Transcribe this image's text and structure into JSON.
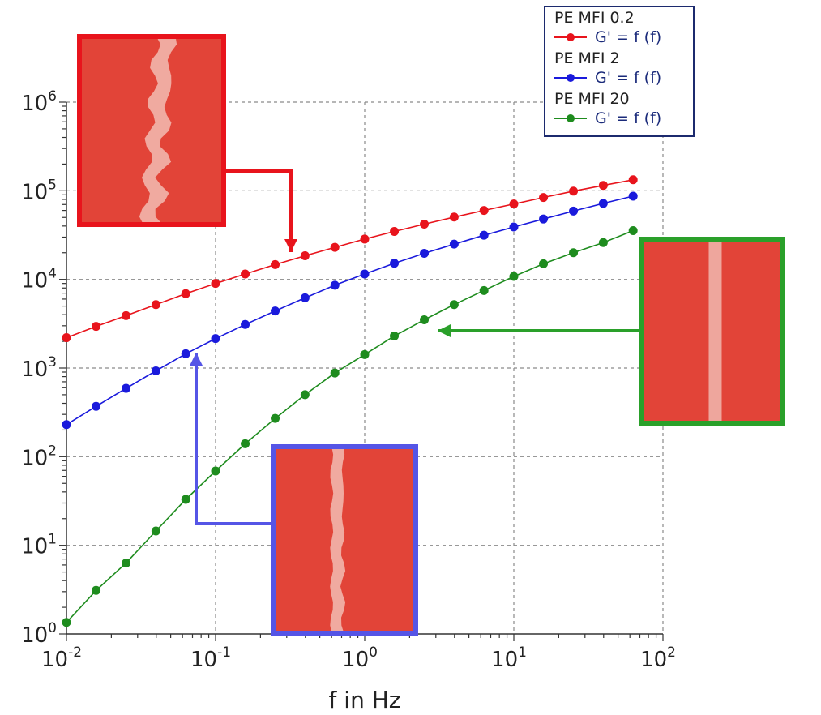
{
  "chart_data": {
    "type": "line",
    "title": "",
    "xlabel": "f in Hz",
    "ylabel": "",
    "xscale": "log",
    "yscale": "log",
    "xlim": [
      0.01,
      100
    ],
    "ylim": [
      1,
      1000000
    ],
    "grid": true,
    "legend_position": "top-right",
    "x_tick_labels": [
      {
        "base": "10",
        "exp": "-2"
      },
      {
        "base": "10",
        "exp": "-1"
      },
      {
        "base": "10",
        "exp": "0"
      },
      {
        "base": "10",
        "exp": "1"
      },
      {
        "base": "10",
        "exp": "2"
      }
    ],
    "y_tick_labels": [
      {
        "base": "10",
        "exp": "0"
      },
      {
        "base": "10",
        "exp": "1"
      },
      {
        "base": "10",
        "exp": "2"
      },
      {
        "base": "10",
        "exp": "3"
      },
      {
        "base": "10",
        "exp": "4"
      },
      {
        "base": "10",
        "exp": "5"
      },
      {
        "base": "10",
        "exp": "6"
      }
    ],
    "x": [
      0.01,
      0.0158,
      0.0251,
      0.0398,
      0.0631,
      0.1,
      0.158,
      0.251,
      0.398,
      0.631,
      1.0,
      1.58,
      2.51,
      3.98,
      6.31,
      10.0,
      15.8,
      25.1,
      39.8,
      63.1
    ],
    "series": [
      {
        "group": "PE MFI 0.2",
        "name": "G' = f (f)",
        "color": "#e8141c",
        "values": [
          2200,
          2950,
          3900,
          5200,
          6900,
          9000,
          11500,
          14700,
          18500,
          23000,
          28500,
          34800,
          42000,
          50500,
          60000,
          71000,
          84000,
          99000,
          115000,
          133000
        ]
      },
      {
        "group": "PE MFI 2",
        "name": "G' = f (f)",
        "color": "#1a1adc",
        "values": [
          230,
          370,
          590,
          930,
          1450,
          2150,
          3100,
          4400,
          6200,
          8600,
          11500,
          15200,
          19700,
          25000,
          31500,
          39000,
          48000,
          59000,
          72000,
          87000
        ]
      },
      {
        "group": "PE MFI 20",
        "name": "G' = f (f)",
        "color": "#1e8c1e",
        "values": [
          1.35,
          3.1,
          6.3,
          14.5,
          33,
          69,
          140,
          270,
          500,
          880,
          1420,
          2300,
          3500,
          5200,
          7500,
          10800,
          15000,
          20000,
          26000,
          35500
        ]
      }
    ]
  },
  "insets": [
    {
      "name": "inset-photo-mfi-0-2",
      "frame_color": "#e8141c",
      "strand": "rough"
    },
    {
      "name": "inset-photo-mfi-2",
      "frame_color": "#5555e6",
      "strand": "slightly-wavy"
    },
    {
      "name": "inset-photo-mfi-20",
      "frame_color": "#2aa02a",
      "strand": "smooth"
    }
  ]
}
